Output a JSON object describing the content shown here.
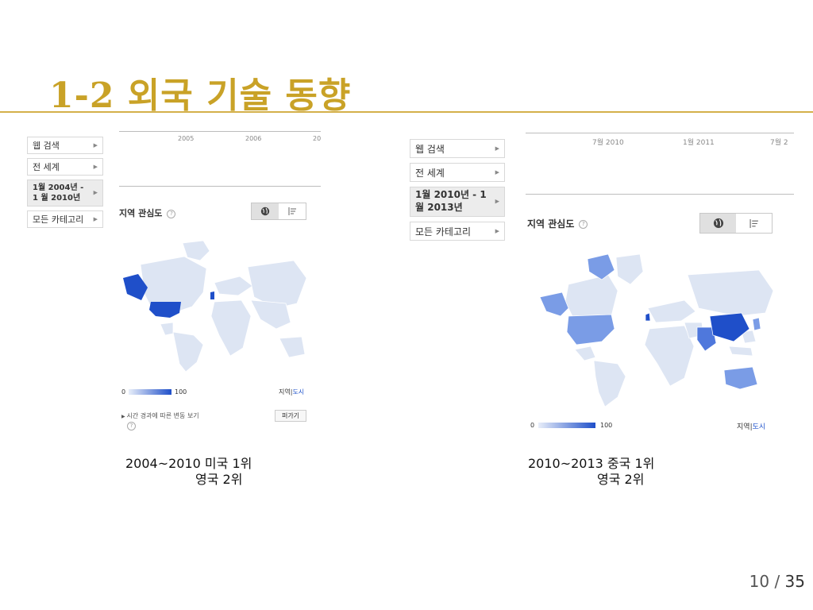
{
  "slide": {
    "title": "1-2 외국 기술 동향",
    "page_current": "10",
    "page_sep": "/",
    "page_total": "35"
  },
  "left_panel": {
    "filters": [
      "웹 검색",
      "전 세계",
      "1월 2004년 - 1 월 2010년",
      "모든 카테고리"
    ],
    "timeline_ticks": [
      "2005",
      "2006",
      "20"
    ],
    "section_title": "지역 관심도",
    "help": "?",
    "scale_min": "0",
    "scale_max": "100",
    "region_label": "지역",
    "region_sep": "|",
    "city_label": "도시",
    "time_change_link": "시간 경과에 따른 변동 보기",
    "embed_button": "퍼가기",
    "caption_line1": "2004~2010 미국 1위",
    "caption_line2": "영국 2위"
  },
  "right_panel": {
    "filters": [
      "웹 검색",
      "전 세계",
      "1월 2010년 - 1 월 2013년",
      "모든 카테고리"
    ],
    "timeline_ticks": [
      "7월 2010",
      "1월 2011",
      "7월 2"
    ],
    "section_title": "지역 관심도",
    "help": "?",
    "scale_min": "0",
    "scale_max": "100",
    "region_label": "지역",
    "region_sep": "|",
    "city_label": "도시",
    "caption_line1": "2010~2013 중국 1위",
    "caption_line2": "영국 2위"
  },
  "icons": {
    "filter_arrow": "triangle-right-icon",
    "map_view": "globe-icon",
    "list_view": "list-icon"
  },
  "colors": {
    "title": "#c9a227",
    "rule": "#d4b04a",
    "map_base": "#dde5f3",
    "map_high": "#1f4fc9",
    "map_mid": "#7a9ce6",
    "link": "#2255cc"
  }
}
